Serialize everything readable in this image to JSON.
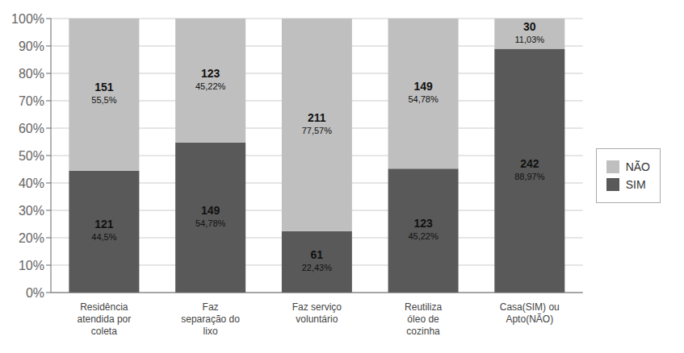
{
  "chart_data": {
    "type": "bar",
    "stacked": true,
    "categories": [
      "Residência\natendida por\ncoleta",
      "Faz\nseparação do\nlixo",
      "Faz serviço\nvoluntário",
      "Reutiliza\nóleo de\ncozinha",
      "Casa(SIM) ou\nApto(NÃO)"
    ],
    "series": [
      {
        "name": "SIM",
        "color": "#595959",
        "values": [
          44.5,
          54.78,
          22.43,
          45.22,
          88.97
        ],
        "value_labels": [
          "44,5%",
          "54,78%",
          "22,43%",
          "45,22%",
          "88,97%"
        ],
        "counts": [
          121,
          149,
          61,
          123,
          242
        ]
      },
      {
        "name": "NÃO",
        "color": "#BFBFBF",
        "values": [
          55.5,
          45.22,
          77.57,
          54.78,
          11.03
        ],
        "value_labels": [
          "55,5%",
          "45,22%",
          "77,57%",
          "54,78%",
          "11,03%"
        ],
        "counts": [
          151,
          123,
          211,
          149,
          30
        ]
      }
    ],
    "ylim": [
      0,
      100
    ],
    "yticks": [
      {
        "value": 0,
        "label": "0%"
      },
      {
        "value": 10,
        "label": "10%"
      },
      {
        "value": 20,
        "label": "20%"
      },
      {
        "value": 30,
        "label": "30%"
      },
      {
        "value": 40,
        "label": "40%"
      },
      {
        "value": 50,
        "label": "50%"
      },
      {
        "value": 60,
        "label": "60%"
      },
      {
        "value": 70,
        "label": "70%"
      },
      {
        "value": 80,
        "label": "80%"
      },
      {
        "value": 90,
        "label": "90%"
      },
      {
        "value": 100,
        "label": "100%"
      }
    ],
    "grid": true,
    "legend": "right",
    "data_labels": true
  }
}
